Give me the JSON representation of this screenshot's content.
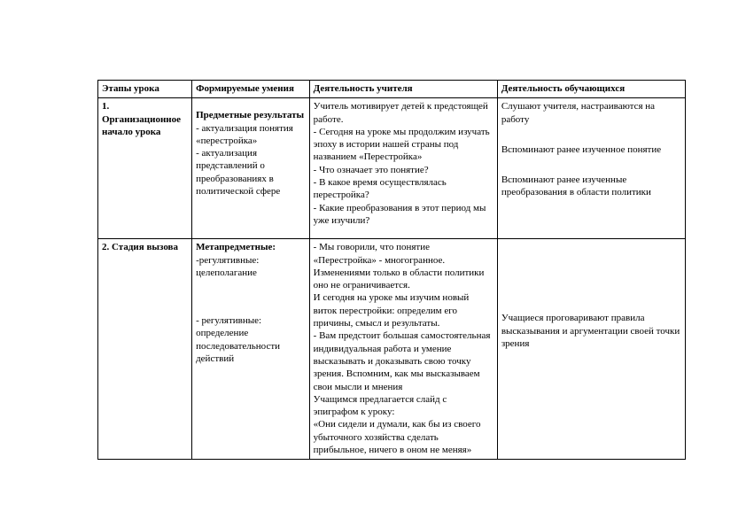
{
  "table": {
    "headers": {
      "c1": "Этапы урока",
      "c2": "Формируемые умения",
      "c3": "Деятельность учителя",
      "c4": "Деятельность обучающихся"
    },
    "row1": {
      "stage_num": "1.",
      "stage_title": "Организационное начало урока",
      "skills_head": "Предметные результаты",
      "skills_l1": "- актуализация понятия «перестройка»",
      "skills_l2": "- актуализация представлений о преобразованиях  в политической сфере",
      "teacher_l1": "Учитель мотивирует детей к предстоящей работе.",
      "teacher_l2": "- Сегодня на уроке мы продолжим изучать эпоху в истории нашей страны под названием «Перестройка»",
      "teacher_l3": "- Что означает это понятие?",
      "teacher_l4": "- В какое время осуществлялась перестройка?",
      "teacher_l5": "- Какие преобразования в этот период мы уже изучили?",
      "student_l1": "Слушают учителя, настраиваются на работу",
      "student_l2": "Вспоминают ранее изученное понятие",
      "student_l3": "Вспоминают ранее изученные преобразования в области политики"
    },
    "row2": {
      "stage_title": "2. Стадия вызова",
      "skills_head": "Метапредметные:",
      "skills_l1": "-регулятивные: целеполагание",
      "skills_l2": "- регулятивные: определение последовательности действий",
      "teacher_l1": "- Мы говорили, что понятие «Перестройка» - многогранное.  Изменениями только в области политики оно не ограничивается.",
      "teacher_l2": "И сегодня на уроке мы изучим новый виток перестройки: определим его причины, смысл и результаты.",
      "teacher_l3": "- Вам предстоит большая самостоятельная индивидуальная работа и умение высказывать и доказывать свою точку зрения. Вспомним, как мы высказываем свои мысли и мнения",
      "teacher_l4": "Учащимся предлагается слайд с эпиграфом к уроку:",
      "teacher_l5": " «Они сидели и думали, как бы из своего убыточного хозяйства сделать прибыльное, ничего в оном не меняя»",
      "student_l1": "Учащиеся проговаривают правила высказывания и аргументации своей точки зрения"
    }
  }
}
